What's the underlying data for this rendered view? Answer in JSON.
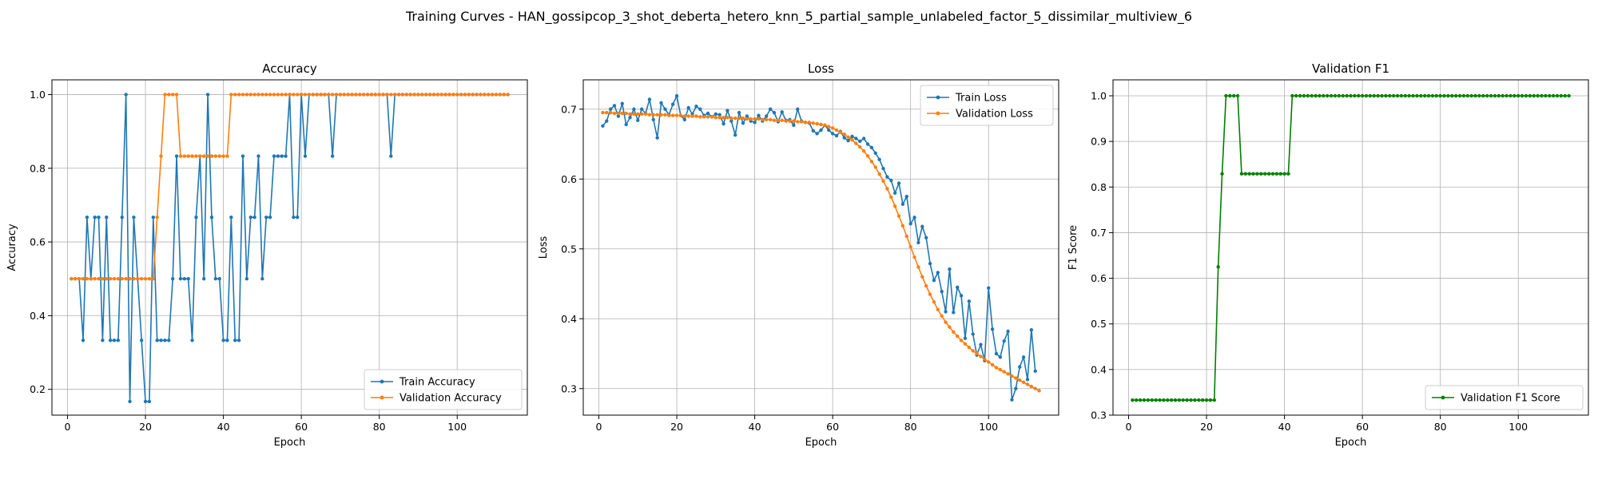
{
  "suptitle": "Training Curves - HAN_gossipcop_3_shot_deberta_hetero_knn_5_partial_sample_unlabeled_factor_5_dissimilar_multiview_6",
  "colors": {
    "train": "#1f77b4",
    "validation": "#ff7f0e",
    "f1": "#008000"
  },
  "chart_data": [
    {
      "type": "line",
      "title": "Accuracy",
      "xlabel": "Epoch",
      "ylabel": "Accuracy",
      "xlim": [
        -4,
        118
      ],
      "ylim": [
        0.13,
        1.04
      ],
      "xticks": [
        0,
        20,
        40,
        60,
        80,
        100
      ],
      "yticks": [
        0.2,
        0.4,
        0.6,
        0.8,
        1.0
      ],
      "ytick_format": 1,
      "grid": true,
      "legend": "lower-right",
      "series": [
        {
          "name": "Train Accuracy",
          "color": "#1f77b4",
          "values": [
            0.5,
            0.5,
            0.5,
            0.333,
            0.667,
            0.5,
            0.667,
            0.667,
            0.333,
            0.667,
            0.333,
            0.333,
            0.333,
            0.667,
            1.0,
            0.167,
            0.667,
            0.5,
            0.333,
            0.167,
            0.167,
            0.667,
            0.333,
            0.333,
            0.333,
            0.333,
            0.5,
            0.833,
            0.5,
            0.5,
            0.5,
            0.333,
            0.667,
            0.833,
            0.5,
            1.0,
            0.667,
            0.5,
            0.5,
            0.333,
            0.333,
            0.667,
            0.333,
            0.333,
            0.833,
            0.5,
            0.667,
            0.667,
            0.833,
            0.5,
            0.667,
            0.667,
            0.833,
            0.833,
            0.833,
            0.833,
            1.0,
            0.667,
            0.667,
            1.0,
            0.833,
            1.0,
            1.0,
            1.0,
            1.0,
            1.0,
            1.0,
            0.833,
            1.0,
            1.0,
            1.0,
            1.0,
            1.0,
            1.0,
            1.0,
            1.0,
            1.0,
            1.0,
            1.0,
            1.0,
            1.0,
            1.0,
            0.833,
            1.0,
            1.0,
            1.0,
            1.0,
            1.0,
            1.0,
            1.0,
            1.0,
            1.0,
            1.0,
            1.0,
            1.0,
            1.0,
            1.0,
            1.0,
            1.0,
            1.0,
            1.0,
            1.0,
            1.0,
            1.0,
            1.0,
            1.0,
            1.0,
            1.0,
            1.0,
            1.0,
            1.0,
            1.0,
            1.0
          ]
        },
        {
          "name": "Validation Accuracy",
          "color": "#ff7f0e",
          "values": [
            0.5,
            0.5,
            0.5,
            0.5,
            0.5,
            0.5,
            0.5,
            0.5,
            0.5,
            0.5,
            0.5,
            0.5,
            0.5,
            0.5,
            0.5,
            0.5,
            0.5,
            0.5,
            0.5,
            0.5,
            0.5,
            0.5,
            0.667,
            0.833,
            1.0,
            1.0,
            1.0,
            1.0,
            0.833,
            0.833,
            0.833,
            0.833,
            0.833,
            0.833,
            0.833,
            0.833,
            0.833,
            0.833,
            0.833,
            0.833,
            0.833,
            1.0,
            1.0,
            1.0,
            1.0,
            1.0,
            1.0,
            1.0,
            1.0,
            1.0,
            1.0,
            1.0,
            1.0,
            1.0,
            1.0,
            1.0,
            1.0,
            1.0,
            1.0,
            1.0,
            1.0,
            1.0,
            1.0,
            1.0,
            1.0,
            1.0,
            1.0,
            1.0,
            1.0,
            1.0,
            1.0,
            1.0,
            1.0,
            1.0,
            1.0,
            1.0,
            1.0,
            1.0,
            1.0,
            1.0,
            1.0,
            1.0,
            1.0,
            1.0,
            1.0,
            1.0,
            1.0,
            1.0,
            1.0,
            1.0,
            1.0,
            1.0,
            1.0,
            1.0,
            1.0,
            1.0,
            1.0,
            1.0,
            1.0,
            1.0,
            1.0,
            1.0,
            1.0,
            1.0,
            1.0,
            1.0,
            1.0,
            1.0,
            1.0,
            1.0,
            1.0,
            1.0,
            1.0
          ]
        }
      ]
    },
    {
      "type": "line",
      "title": "Loss",
      "xlabel": "Epoch",
      "ylabel": "Loss",
      "xlim": [
        -4,
        118
      ],
      "ylim": [
        0.262,
        0.742
      ],
      "xticks": [
        0,
        20,
        40,
        60,
        80,
        100
      ],
      "yticks": [
        0.3,
        0.4,
        0.5,
        0.6,
        0.7
      ],
      "ytick_format": 1,
      "grid": true,
      "legend": "top-right",
      "series": [
        {
          "name": "Train Loss",
          "color": "#1f77b4",
          "values": [
            0.676,
            0.683,
            0.7,
            0.705,
            0.69,
            0.708,
            0.678,
            0.688,
            0.7,
            0.684,
            0.7,
            0.694,
            0.714,
            0.685,
            0.659,
            0.709,
            0.7,
            0.692,
            0.707,
            0.719,
            0.691,
            0.685,
            0.702,
            0.693,
            0.704,
            0.7,
            0.691,
            0.694,
            0.689,
            0.693,
            0.692,
            0.679,
            0.698,
            0.683,
            0.663,
            0.695,
            0.68,
            0.69,
            0.683,
            0.681,
            0.691,
            0.683,
            0.69,
            0.7,
            0.695,
            0.682,
            0.696,
            0.684,
            0.685,
            0.677,
            0.7,
            0.683,
            0.681,
            0.68,
            0.669,
            0.665,
            0.67,
            0.677,
            0.67,
            0.665,
            0.662,
            0.668,
            0.659,
            0.655,
            0.661,
            0.658,
            0.654,
            0.658,
            0.65,
            0.645,
            0.637,
            0.628,
            0.615,
            0.603,
            0.598,
            0.58,
            0.594,
            0.564,
            0.575,
            0.536,
            0.545,
            0.509,
            0.532,
            0.516,
            0.479,
            0.455,
            0.466,
            0.439,
            0.41,
            0.471,
            0.409,
            0.445,
            0.433,
            0.372,
            0.425,
            0.378,
            0.348,
            0.363,
            0.34,
            0.444,
            0.385,
            0.35,
            0.345,
            0.368,
            0.382,
            0.284,
            0.3,
            0.331,
            0.345,
            0.313,
            0.384,
            0.325
          ]
        },
        {
          "name": "Validation Loss",
          "color": "#ff7f0e",
          "values": [
            0.695,
            0.695,
            0.695,
            0.694,
            0.694,
            0.694,
            0.694,
            0.693,
            0.693,
            0.693,
            0.693,
            0.693,
            0.692,
            0.692,
            0.692,
            0.692,
            0.692,
            0.691,
            0.691,
            0.691,
            0.691,
            0.69,
            0.69,
            0.69,
            0.69,
            0.689,
            0.689,
            0.689,
            0.689,
            0.688,
            0.688,
            0.688,
            0.688,
            0.687,
            0.687,
            0.687,
            0.687,
            0.686,
            0.686,
            0.686,
            0.686,
            0.685,
            0.685,
            0.685,
            0.684,
            0.684,
            0.684,
            0.683,
            0.683,
            0.683,
            0.682,
            0.682,
            0.681,
            0.681,
            0.68,
            0.679,
            0.678,
            0.677,
            0.675,
            0.673,
            0.67,
            0.667,
            0.664,
            0.66,
            0.656,
            0.651,
            0.646,
            0.64,
            0.633,
            0.625,
            0.617,
            0.607,
            0.597,
            0.586,
            0.574,
            0.561,
            0.547,
            0.533,
            0.518,
            0.503,
            0.488,
            0.474,
            0.46,
            0.447,
            0.435,
            0.424,
            0.413,
            0.404,
            0.395,
            0.388,
            0.381,
            0.375,
            0.369,
            0.364,
            0.359,
            0.354,
            0.35,
            0.346,
            0.342,
            0.338,
            0.334,
            0.33,
            0.327,
            0.324,
            0.321,
            0.318,
            0.315,
            0.312,
            0.309,
            0.306,
            0.303,
            0.3,
            0.297
          ]
        }
      ]
    },
    {
      "type": "line",
      "title": "Validation F1",
      "xlabel": "Epoch",
      "ylabel": "F1 Score",
      "xlim": [
        -4,
        118
      ],
      "ylim": [
        0.3,
        1.035
      ],
      "xticks": [
        0,
        20,
        40,
        60,
        80,
        100
      ],
      "yticks": [
        0.3,
        0.4,
        0.5,
        0.6,
        0.7,
        0.8,
        0.9,
        1.0
      ],
      "ytick_format": 1,
      "grid": true,
      "legend": "lower-right",
      "series": [
        {
          "name": "Validation F1 Score",
          "color": "#008000",
          "values": [
            0.333,
            0.333,
            0.333,
            0.333,
            0.333,
            0.333,
            0.333,
            0.333,
            0.333,
            0.333,
            0.333,
            0.333,
            0.333,
            0.333,
            0.333,
            0.333,
            0.333,
            0.333,
            0.333,
            0.333,
            0.333,
            0.333,
            0.625,
            0.829,
            1.0,
            1.0,
            1.0,
            1.0,
            0.829,
            0.829,
            0.829,
            0.829,
            0.829,
            0.829,
            0.829,
            0.829,
            0.829,
            0.829,
            0.829,
            0.829,
            0.829,
            1.0,
            1.0,
            1.0,
            1.0,
            1.0,
            1.0,
            1.0,
            1.0,
            1.0,
            1.0,
            1.0,
            1.0,
            1.0,
            1.0,
            1.0,
            1.0,
            1.0,
            1.0,
            1.0,
            1.0,
            1.0,
            1.0,
            1.0,
            1.0,
            1.0,
            1.0,
            1.0,
            1.0,
            1.0,
            1.0,
            1.0,
            1.0,
            1.0,
            1.0,
            1.0,
            1.0,
            1.0,
            1.0,
            1.0,
            1.0,
            1.0,
            1.0,
            1.0,
            1.0,
            1.0,
            1.0,
            1.0,
            1.0,
            1.0,
            1.0,
            1.0,
            1.0,
            1.0,
            1.0,
            1.0,
            1.0,
            1.0,
            1.0,
            1.0,
            1.0,
            1.0,
            1.0,
            1.0,
            1.0,
            1.0,
            1.0,
            1.0,
            1.0,
            1.0,
            1.0,
            1.0,
            1.0
          ]
        }
      ]
    }
  ]
}
